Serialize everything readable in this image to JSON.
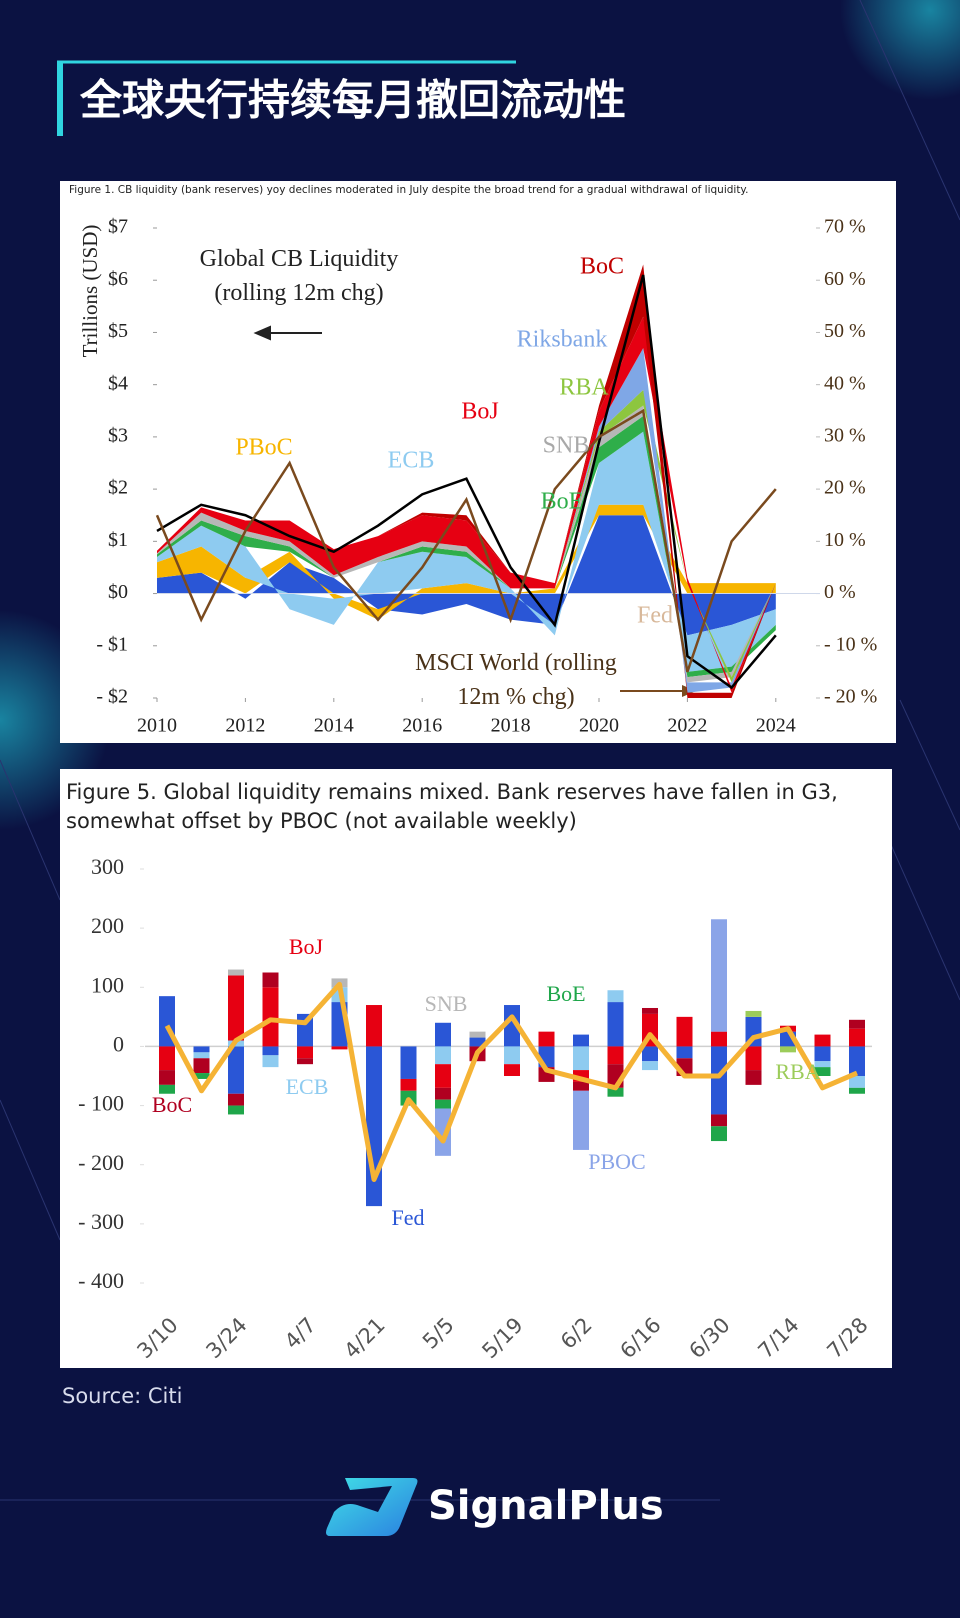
{
  "title": "全球央行持续每月撤回流动性",
  "source": "Source: Citi",
  "brand": "SignalPlus",
  "chart_data": [
    {
      "type": "area",
      "stacked": true,
      "title": "Figure 1. CB liquidity (bank reserves) yoy declines moderated in July despite the broad trend for a gradual withdrawal of liquidity.",
      "ylabel": "Trillions (USD)",
      "x": [
        2010,
        2011,
        2012,
        2013,
        2014,
        2015,
        2016,
        2017,
        2018,
        2019,
        2020,
        2021,
        2022,
        2023,
        2024
      ],
      "xlim": [
        2010,
        2025
      ],
      "xticks": [
        2010,
        2012,
        2014,
        2016,
        2018,
        2020,
        2022,
        2024
      ],
      "ylim": [
        -2,
        7
      ],
      "yticks": [
        {
          "value": -2,
          "label": "- $2"
        },
        {
          "value": -1,
          "label": "- $1"
        },
        {
          "value": 0,
          "label": "$0"
        },
        {
          "value": 1,
          "label": "$1"
        },
        {
          "value": 2,
          "label": "$2"
        },
        {
          "value": 3,
          "label": "$3"
        },
        {
          "value": 4,
          "label": "$4"
        },
        {
          "value": 5,
          "label": "$5"
        },
        {
          "value": 6,
          "label": "$6"
        },
        {
          "value": 7,
          "label": "$7"
        }
      ],
      "y2lim": [
        -20,
        70
      ],
      "y2ticks": [
        {
          "value": -20,
          "label": "- 20 %"
        },
        {
          "value": -10,
          "label": "- 10 %"
        },
        {
          "value": 0,
          "label": "0 %"
        },
        {
          "value": 10,
          "label": "10 %"
        },
        {
          "value": 20,
          "label": "20 %"
        },
        {
          "value": 30,
          "label": "30 %"
        },
        {
          "value": 40,
          "label": "40 %"
        },
        {
          "value": 50,
          "label": "50 %"
        },
        {
          "value": 60,
          "label": "60 %"
        },
        {
          "value": 70,
          "label": "70 %"
        }
      ],
      "series": [
        {
          "name": "Fed",
          "color": "#2a56d6",
          "values": [
            0.3,
            0.4,
            -0.1,
            0.6,
            0.3,
            -0.3,
            -0.4,
            -0.2,
            -0.5,
            -0.6,
            1.5,
            1.5,
            -0.8,
            -0.6,
            -0.3
          ]
        },
        {
          "name": "PBoC",
          "color": "#f7b500",
          "values": [
            0.3,
            0.5,
            0.3,
            0.2,
            -0.1,
            -0.2,
            0.1,
            0.2,
            0,
            0.1,
            0.2,
            0.2,
            0.2,
            0.2,
            0.2
          ]
        },
        {
          "name": "ECB",
          "color": "#8ecbf0",
          "values": [
            0.1,
            0.4,
            0.6,
            -0.3,
            -0.5,
            0.6,
            0.7,
            0.5,
            0.1,
            -0.2,
            0.8,
            1.4,
            -0.7,
            -0.8,
            -0.3
          ]
        },
        {
          "name": "BoE",
          "color": "#2fae4a",
          "values": [
            0.05,
            0.1,
            0.2,
            0.1,
            0,
            0,
            0.1,
            0.1,
            0,
            0,
            0.3,
            0.3,
            -0.1,
            -0.1,
            -0.1
          ]
        },
        {
          "name": "SNB",
          "color": "#b7b7b7",
          "values": [
            0.02,
            0.15,
            0.1,
            0.1,
            0.05,
            0.1,
            0.1,
            0.1,
            0,
            0,
            0.2,
            0.2,
            -0.1,
            -0.1,
            0
          ]
        },
        {
          "name": "RBA",
          "color": "#8dc63f",
          "values": [
            0,
            0,
            0,
            0,
            0,
            0,
            0,
            0,
            0,
            0,
            0.1,
            0.3,
            0,
            -0.1,
            0
          ]
        },
        {
          "name": "Riksbank",
          "color": "#7fa7e6",
          "values": [
            0,
            0,
            0,
            0,
            0,
            0,
            0,
            0,
            0,
            0,
            0.1,
            0.8,
            -0.2,
            -0.1,
            0
          ]
        },
        {
          "name": "BoJ",
          "color": "#e60012",
          "values": [
            0.05,
            0.1,
            0.2,
            0.4,
            0.5,
            0.4,
            0.5,
            0.5,
            0.3,
            0.1,
            0.3,
            0.6,
            0.1,
            -0.1,
            0
          ]
        },
        {
          "name": "BoC",
          "color": "#c00000",
          "values": [
            0,
            0,
            0,
            0,
            0,
            0,
            0.05,
            0.1,
            0,
            0,
            0.1,
            1.0,
            -0.1,
            -0.1,
            0
          ]
        }
      ],
      "lines": [
        {
          "name": "Global CB Liquidity (rolling 12m chg)",
          "color": "#000000",
          "values": [
            1.2,
            1.7,
            1.5,
            1.1,
            0.8,
            1.3,
            1.9,
            2.2,
            0.5,
            -0.6,
            2.9,
            6.1,
            -1.2,
            -1.8,
            -0.8
          ]
        },
        {
          "name": "MSCI World (rolling 12m % chg)",
          "color": "#7a4a1e",
          "axis": "y2",
          "values": [
            15,
            -5,
            12,
            25,
            5,
            -5,
            5,
            18,
            -5,
            20,
            30,
            35,
            -15,
            10,
            20
          ]
        }
      ]
    },
    {
      "type": "bar",
      "stacked": true,
      "title": "Figure 5. Global liquidity remains mixed. Bank reserves have fallen in G3, somewhat offset by PBOC (not available weekly)",
      "categories": [
        "3/10",
        null,
        "3/24",
        null,
        "4/7",
        null,
        "4/21",
        null,
        "5/5",
        null,
        "5/19",
        null,
        "6/2",
        null,
        "6/16",
        null,
        "6/30",
        null,
        "7/14",
        null,
        "7/28"
      ],
      "ylim": [
        -400,
        300
      ],
      "yticks": [
        {
          "value": -400,
          "label": "- 400"
        },
        {
          "value": -300,
          "label": "- 300"
        },
        {
          "value": -200,
          "label": "- 200"
        },
        {
          "value": -100,
          "label": "- 100"
        },
        0,
        100,
        200,
        300
      ],
      "series": [
        {
          "name": "Fed",
          "color": "#2a56d6",
          "values": [
            85,
            -10,
            -80,
            -15,
            55,
            75,
            -270,
            -55,
            40,
            15,
            70,
            -35,
            20,
            75,
            -25,
            -20,
            -115,
            50,
            25,
            -25,
            -50
          ]
        },
        {
          "name": "ECB",
          "color": "#8ecbf0",
          "values": [
            0,
            -10,
            10,
            -20,
            0,
            25,
            0,
            0,
            -30,
            0,
            -30,
            0,
            -40,
            20,
            -15,
            0,
            0,
            0,
            0,
            -10,
            -20
          ]
        },
        {
          "name": "BoJ",
          "color": "#e60012",
          "values": [
            -40,
            0,
            110,
            100,
            -20,
            -5,
            70,
            -20,
            -40,
            0,
            -20,
            25,
            -20,
            -30,
            55,
            50,
            25,
            -40,
            10,
            20,
            30
          ]
        },
        {
          "name": "BoC",
          "color": "#b00020",
          "values": [
            -25,
            -25,
            -20,
            25,
            -10,
            0,
            0,
            0,
            -20,
            -25,
            0,
            -25,
            -15,
            -40,
            10,
            -30,
            -20,
            -25,
            0,
            0,
            15
          ]
        },
        {
          "name": "BoE",
          "color": "#1fa64a",
          "values": [
            -15,
            -10,
            -15,
            0,
            0,
            0,
            0,
            -25,
            -15,
            0,
            0,
            0,
            0,
            -15,
            0,
            0,
            -25,
            0,
            0,
            -15,
            -10
          ]
        },
        {
          "name": "PBOC",
          "color": "#8aa4e8",
          "values": [
            0,
            0,
            0,
            0,
            0,
            0,
            0,
            0,
            -80,
            0,
            0,
            0,
            -100,
            0,
            0,
            0,
            190,
            0,
            0,
            0,
            0
          ]
        },
        {
          "name": "SNB",
          "color": "#b7b7b7",
          "values": [
            0,
            0,
            10,
            0,
            0,
            15,
            0,
            0,
            0,
            10,
            0,
            0,
            0,
            0,
            0,
            0,
            0,
            0,
            0,
            0,
            0
          ]
        },
        {
          "name": "RBA",
          "color": "#9ccc5a",
          "values": [
            0,
            0,
            0,
            0,
            0,
            0,
            0,
            0,
            0,
            0,
            0,
            0,
            0,
            0,
            0,
            0,
            0,
            10,
            -10,
            0,
            0
          ]
        }
      ],
      "line": {
        "color": "#f5b335",
        "values": [
          35,
          -75,
          10,
          45,
          40,
          105,
          -225,
          -90,
          -160,
          -10,
          50,
          -40,
          -55,
          -70,
          20,
          -50,
          -50,
          15,
          30,
          -70,
          -45
        ]
      }
    }
  ]
}
